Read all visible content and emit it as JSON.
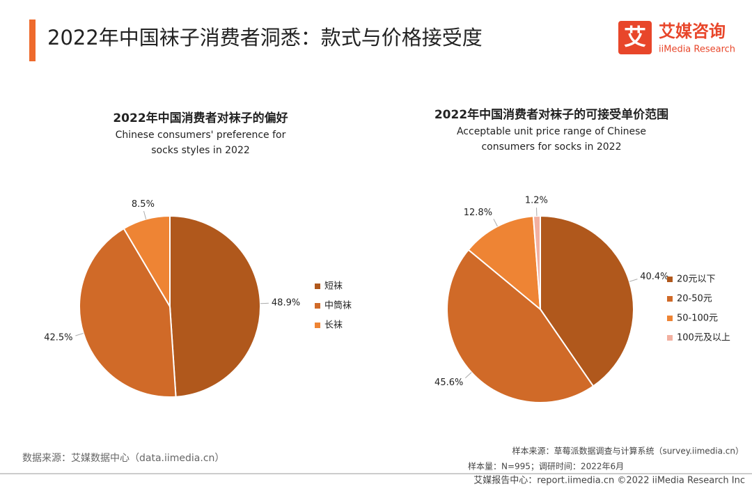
{
  "header": {
    "title": "2022年中国袜子消费者洞悉：款式与价格接受度",
    "logo_icon": "艾",
    "logo_cn": "艾媒咨询",
    "logo_en": "iiMedia Research"
  },
  "chart_data": [
    {
      "type": "pie",
      "title": "2022年中国消费者对袜子的偏好",
      "subtitle": [
        "Chinese consumers' preference for",
        "socks styles in 2022"
      ],
      "categories": [
        "短袜",
        "中筒袜",
        "长袜"
      ],
      "values": [
        48.9,
        42.5,
        8.5
      ],
      "value_labels": [
        "48.9%",
        "42.5%",
        "8.5%"
      ],
      "colors": [
        "#b0581c",
        "#d06a28",
        "#ee8434"
      ]
    },
    {
      "type": "pie",
      "title": "2022年中国消费者对袜子的可接受单价范围",
      "subtitle": [
        "Acceptable unit price range of Chinese",
        "consumers for socks in 2022"
      ],
      "categories": [
        "20元以下",
        "20-50元",
        "50-100元",
        "100元及以上"
      ],
      "values": [
        40.4,
        45.6,
        12.8,
        1.2
      ],
      "value_labels": [
        "40.4%",
        "45.6%",
        "12.8%",
        "1.2%"
      ],
      "colors": [
        "#b0581c",
        "#d06a28",
        "#ee8434",
        "#f2b0a0"
      ]
    }
  ],
  "footer": {
    "source": "数据来源：艾媒数据中心（data.iimedia.cn）",
    "sample_source": "样本来源：草莓派数据调查与计算系统（survey.iimedia.cn）",
    "sample_size": "样本量：N=995；调研时间：2022年6月",
    "copyright": "艾媒报告中心：report.iimedia.cn  ©2022  iiMedia Research  Inc"
  }
}
